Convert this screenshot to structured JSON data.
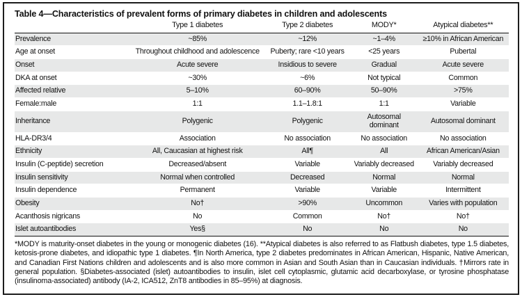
{
  "table": {
    "title": "Table 4—Characteristics of prevalent forms of primary diabetes in children and adolescents",
    "columns": [
      "",
      "Type 1 diabetes",
      "Type 2 diabetes",
      "MODY*",
      "Atypical diabetes**"
    ],
    "rows": [
      {
        "label": "Prevalence",
        "values": [
          "~85%",
          "~12%",
          "~1–4%",
          "≥10% in African American"
        ]
      },
      {
        "label": "Age at onset",
        "values": [
          "Throughout childhood and adolescence",
          "Puberty; rare <10 years",
          "<25 years",
          "Pubertal"
        ]
      },
      {
        "label": "Onset",
        "values": [
          "Acute severe",
          "Insidious to severe",
          "Gradual",
          "Acute severe"
        ]
      },
      {
        "label": "DKA at onset",
        "values": [
          "~30%",
          "~6%",
          "Not typical",
          "Common"
        ]
      },
      {
        "label": "Affected relative",
        "values": [
          "5–10%",
          "60–90%",
          "50–90%",
          ">75%"
        ]
      },
      {
        "label": "Female:male",
        "values": [
          "1:1",
          "1.1–1.8:1",
          "1:1",
          "Variable"
        ]
      },
      {
        "label": "Inheritance",
        "values": [
          "Polygenic",
          "Polygenic",
          "Autosomal dominant",
          "Autosomal dominant"
        ]
      },
      {
        "label": "HLA-DR3/4",
        "values": [
          "Association",
          "No association",
          "No association",
          "No association"
        ]
      },
      {
        "label": "Ethnicity",
        "values": [
          "All, Caucasian at highest risk",
          "All¶",
          "All",
          "African American/Asian"
        ]
      },
      {
        "label": "Insulin (C-peptide) secretion",
        "values": [
          "Decreased/absent",
          "Variable",
          "Variably decreased",
          "Variably decreased"
        ]
      },
      {
        "label": "Insulin sensitivity",
        "values": [
          "Normal when controlled",
          "Decreased",
          "Normal",
          "Normal"
        ]
      },
      {
        "label": "Insulin dependence",
        "values": [
          "Permanent",
          "Variable",
          "Variable",
          "Intermittent"
        ]
      },
      {
        "label": "Obesity",
        "values": [
          "No†",
          ">90%",
          "Uncommon",
          "Varies with population"
        ]
      },
      {
        "label": "Acanthosis nigricans",
        "values": [
          "No",
          "Common",
          "No†",
          "No†"
        ]
      },
      {
        "label": "Islet autoantibodies",
        "values": [
          "Yes§",
          "No",
          "No",
          "No"
        ]
      }
    ],
    "footnote": "*MODY is maturity-onset diabetes in the young or monogenic diabetes (16). **Atypical diabetes is also referred to as Flatbush diabetes, type 1.5 diabetes, ketosis-prone diabetes, and idiopathic type 1 diabetes. ¶In North America, type 2 diabetes predominates in African American, Hispanic, Native American, and Canadian First Nations children and adolescents and is also more common in Asian and South Asian than in Caucasian individuals. †Mirrors rate in general population. §Diabetes-associated (islet) autoantibodies to insulin, islet cell cytoplasmic, glutamic acid decarboxylase, or tyrosine phosphatase (insulinoma-associated) antibody (IA-2, ICA512, ZnT8 antibodies in 85–95%) at diagnosis."
  },
  "colors": {
    "shaded_row": "#e7e8e8",
    "border": "#1c1c1c",
    "text": "#111111"
  }
}
